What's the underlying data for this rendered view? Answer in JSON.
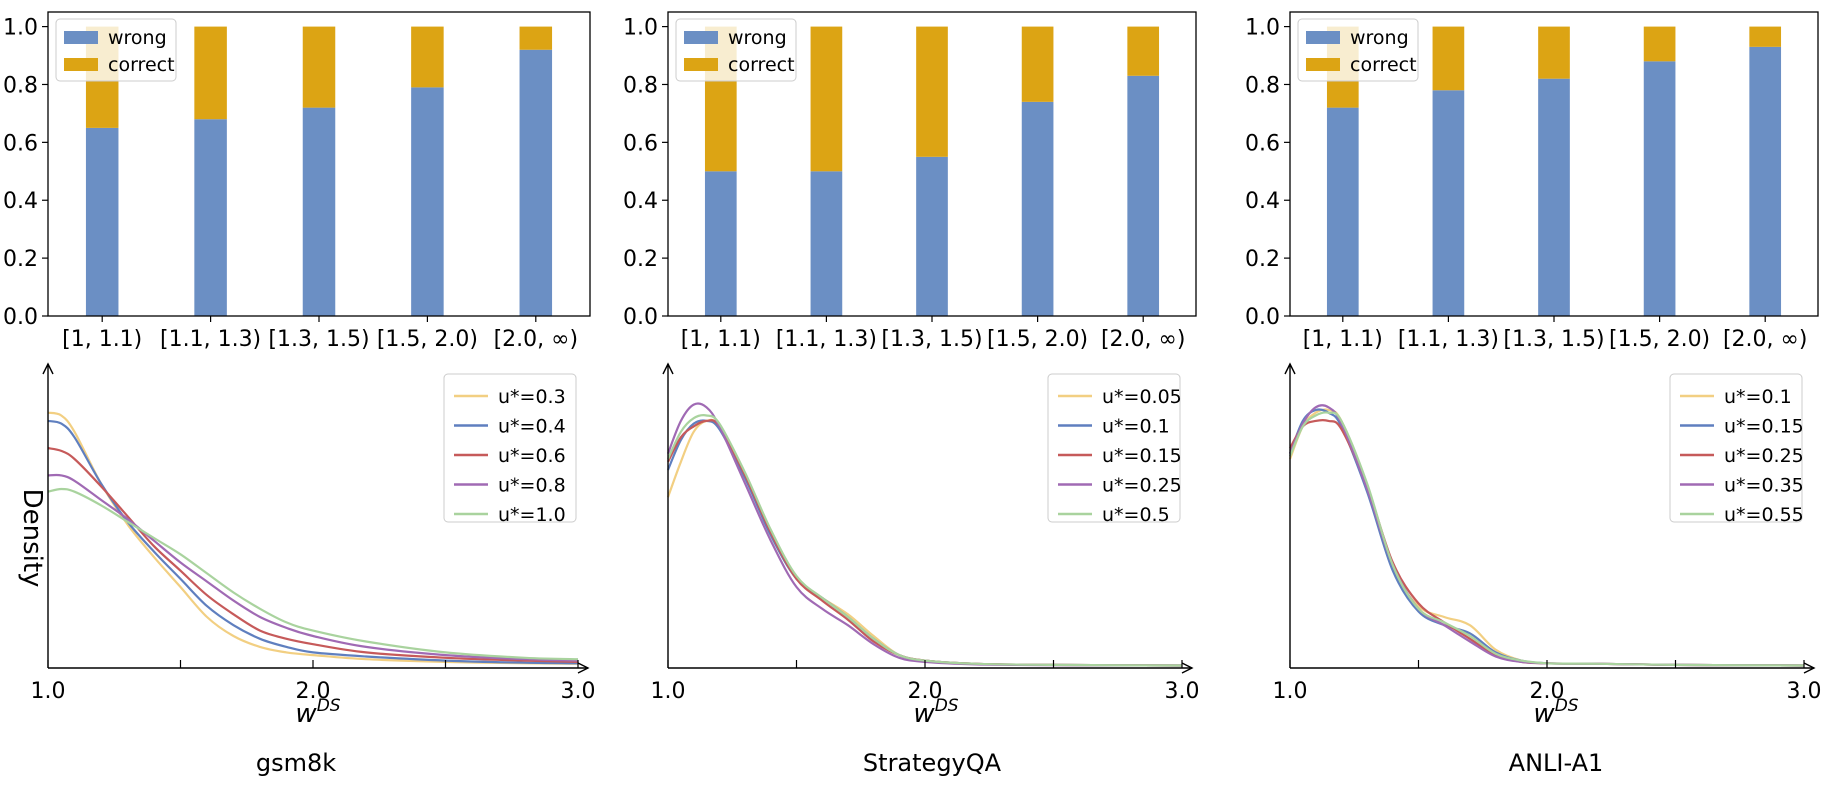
{
  "figure": {
    "x_axis_label": {
      "base": "w",
      "sup": "DS"
    },
    "y_axis_label": "Density",
    "panels": [
      {
        "caption": "gsm8k"
      },
      {
        "caption": "StrategyQA"
      },
      {
        "caption": "ANLI-A1"
      }
    ]
  },
  "colors": {
    "wrong": "#6b8fc4",
    "correct": "#dca414",
    "kde": [
      "#f2cf82",
      "#5f7fbf",
      "#c65a5a",
      "#a06ab4",
      "#a9d39e"
    ]
  },
  "chart_data": [
    {
      "type": "bar",
      "stacked": true,
      "normalized": true,
      "dataset": "gsm8k",
      "categories": [
        "[1, 1.1)",
        "[1.1, 1.3)",
        "[1.3, 1.5)",
        "[1.5, 2.0)",
        "[2.0, ∞)"
      ],
      "series": [
        {
          "name": "wrong",
          "values": [
            0.65,
            0.68,
            0.72,
            0.79,
            0.92
          ]
        },
        {
          "name": "correct",
          "values": [
            0.35,
            0.32,
            0.28,
            0.21,
            0.08
          ]
        }
      ],
      "ylim": [
        0,
        1.0
      ],
      "yticks": [
        "0.0",
        "0.2",
        "0.4",
        "0.6",
        "0.8",
        "1.0"
      ],
      "legend": {
        "position": "top-left",
        "entries": [
          "wrong",
          "correct"
        ]
      }
    },
    {
      "type": "bar",
      "stacked": true,
      "normalized": true,
      "dataset": "StrategyQA",
      "categories": [
        "[1, 1.1)",
        "[1.1, 1.3)",
        "[1.3, 1.5)",
        "[1.5, 2.0)",
        "[2.0, ∞)"
      ],
      "series": [
        {
          "name": "wrong",
          "values": [
            0.5,
            0.5,
            0.55,
            0.74,
            0.83
          ]
        },
        {
          "name": "correct",
          "values": [
            0.5,
            0.5,
            0.45,
            0.26,
            0.17
          ]
        }
      ],
      "ylim": [
        0,
        1.0
      ],
      "yticks": [
        "0.0",
        "0.2",
        "0.4",
        "0.6",
        "0.8",
        "1.0"
      ],
      "legend": {
        "position": "top-left",
        "entries": [
          "wrong",
          "correct"
        ]
      }
    },
    {
      "type": "bar",
      "stacked": true,
      "normalized": true,
      "dataset": "ANLI-A1",
      "categories": [
        "[1, 1.1)",
        "[1.1, 1.3)",
        "[1.3, 1.5)",
        "[1.5, 2.0)",
        "[2.0, ∞)"
      ],
      "series": [
        {
          "name": "wrong",
          "values": [
            0.72,
            0.78,
            0.82,
            0.88,
            0.93
          ]
        },
        {
          "name": "correct",
          "values": [
            0.28,
            0.22,
            0.18,
            0.12,
            0.07
          ]
        }
      ],
      "ylim": [
        0,
        1.0
      ],
      "yticks": [
        "0.0",
        "0.2",
        "0.4",
        "0.6",
        "0.8",
        "1.0"
      ],
      "legend": {
        "position": "top-left",
        "entries": [
          "wrong",
          "correct"
        ]
      }
    },
    {
      "type": "line",
      "subtype": "kde",
      "dataset": "gsm8k",
      "xlim": [
        1.0,
        3.0
      ],
      "ylim": [
        0,
        1.0
      ],
      "xticks": [
        "1.0",
        "2.0",
        "3.0"
      ],
      "x": [
        1.0,
        1.05,
        1.1,
        1.2,
        1.3,
        1.4,
        1.5,
        1.6,
        1.7,
        1.8,
        1.9,
        2.0,
        2.2,
        2.5,
        2.8,
        3.0
      ],
      "series": [
        {
          "name": "u*=0.3",
          "values": [
            0.93,
            0.92,
            0.86,
            0.67,
            0.52,
            0.4,
            0.29,
            0.18,
            0.11,
            0.07,
            0.05,
            0.04,
            0.025,
            0.015,
            0.01,
            0.008
          ]
        },
        {
          "name": "u*=0.4",
          "values": [
            0.9,
            0.89,
            0.84,
            0.67,
            0.53,
            0.42,
            0.32,
            0.22,
            0.15,
            0.1,
            0.07,
            0.05,
            0.035,
            0.02,
            0.012,
            0.01
          ]
        },
        {
          "name": "u*=0.6",
          "values": [
            0.8,
            0.79,
            0.76,
            0.66,
            0.55,
            0.44,
            0.35,
            0.26,
            0.19,
            0.13,
            0.1,
            0.08,
            0.05,
            0.03,
            0.02,
            0.015
          ]
        },
        {
          "name": "u*=0.8",
          "values": [
            0.7,
            0.7,
            0.68,
            0.61,
            0.54,
            0.46,
            0.38,
            0.31,
            0.24,
            0.18,
            0.14,
            0.11,
            0.07,
            0.04,
            0.025,
            0.02
          ]
        },
        {
          "name": "u*=1.0",
          "values": [
            0.64,
            0.65,
            0.64,
            0.59,
            0.53,
            0.47,
            0.41,
            0.34,
            0.27,
            0.21,
            0.16,
            0.13,
            0.09,
            0.05,
            0.03,
            0.025
          ]
        }
      ],
      "legend": {
        "position": "top-right",
        "entries": [
          "u*=0.3",
          "u*=0.4",
          "u*=0.6",
          "u*=0.8",
          "u*=1.0"
        ]
      }
    },
    {
      "type": "line",
      "subtype": "kde",
      "dataset": "StrategyQA",
      "xlim": [
        1.0,
        3.0
      ],
      "ylim": [
        0,
        1.0
      ],
      "xticks": [
        "1.0",
        "2.0",
        "3.0"
      ],
      "x": [
        1.0,
        1.05,
        1.1,
        1.15,
        1.2,
        1.3,
        1.4,
        1.5,
        1.6,
        1.7,
        1.8,
        1.9,
        2.0,
        2.2,
        2.5,
        3.0
      ],
      "series": [
        {
          "name": "u*=0.05",
          "values": [
            0.62,
            0.75,
            0.86,
            0.9,
            0.88,
            0.7,
            0.48,
            0.32,
            0.25,
            0.19,
            0.11,
            0.04,
            0.02,
            0.008,
            0.004,
            0.002
          ]
        },
        {
          "name": "u*=0.1",
          "values": [
            0.72,
            0.83,
            0.89,
            0.9,
            0.87,
            0.69,
            0.48,
            0.32,
            0.25,
            0.18,
            0.1,
            0.04,
            0.02,
            0.008,
            0.004,
            0.002
          ]
        },
        {
          "name": "u*=0.15",
          "values": [
            0.75,
            0.84,
            0.88,
            0.9,
            0.88,
            0.7,
            0.49,
            0.32,
            0.24,
            0.17,
            0.09,
            0.04,
            0.02,
            0.008,
            0.004,
            0.002
          ]
        },
        {
          "name": "u*=0.25",
          "values": [
            0.78,
            0.9,
            0.96,
            0.95,
            0.88,
            0.67,
            0.46,
            0.29,
            0.21,
            0.15,
            0.08,
            0.03,
            0.015,
            0.006,
            0.003,
            0.002
          ]
        },
        {
          "name": "u*=0.5",
          "values": [
            0.76,
            0.86,
            0.91,
            0.92,
            0.89,
            0.71,
            0.5,
            0.33,
            0.25,
            0.18,
            0.1,
            0.04,
            0.02,
            0.008,
            0.004,
            0.002
          ]
        }
      ],
      "legend": {
        "position": "top-right",
        "entries": [
          "u*=0.05",
          "u*=0.1",
          "u*=0.15",
          "u*=0.25",
          "u*=0.5"
        ]
      }
    },
    {
      "type": "line",
      "subtype": "kde",
      "dataset": "ANLI-A1",
      "xlim": [
        1.0,
        3.0
      ],
      "ylim": [
        0,
        1.0
      ],
      "xticks": [
        "1.0",
        "2.0",
        "3.0"
      ],
      "x": [
        1.0,
        1.05,
        1.1,
        1.15,
        1.2,
        1.3,
        1.4,
        1.5,
        1.6,
        1.7,
        1.8,
        1.9,
        2.0,
        2.2,
        2.5,
        3.0
      ],
      "series": [
        {
          "name": "u*=0.1",
          "values": [
            0.76,
            0.88,
            0.93,
            0.94,
            0.9,
            0.66,
            0.36,
            0.22,
            0.18,
            0.15,
            0.06,
            0.02,
            0.01,
            0.008,
            0.004,
            0.002
          ]
        },
        {
          "name": "u*=0.15",
          "values": [
            0.78,
            0.9,
            0.94,
            0.93,
            0.88,
            0.64,
            0.35,
            0.2,
            0.15,
            0.12,
            0.05,
            0.02,
            0.01,
            0.008,
            0.004,
            0.002
          ]
        },
        {
          "name": "u*=0.25",
          "values": [
            0.8,
            0.88,
            0.9,
            0.9,
            0.87,
            0.66,
            0.38,
            0.23,
            0.16,
            0.1,
            0.04,
            0.015,
            0.01,
            0.008,
            0.004,
            0.002
          ]
        },
        {
          "name": "u*=0.35",
          "values": [
            0.78,
            0.89,
            0.95,
            0.95,
            0.89,
            0.65,
            0.37,
            0.21,
            0.15,
            0.09,
            0.035,
            0.015,
            0.01,
            0.008,
            0.004,
            0.002
          ]
        },
        {
          "name": "u*=0.55",
          "values": [
            0.77,
            0.88,
            0.92,
            0.93,
            0.9,
            0.67,
            0.37,
            0.21,
            0.16,
            0.11,
            0.045,
            0.02,
            0.01,
            0.008,
            0.004,
            0.002
          ]
        }
      ],
      "legend": {
        "position": "top-right",
        "entries": [
          "u*=0.1",
          "u*=0.15",
          "u*=0.25",
          "u*=0.35",
          "u*=0.55"
        ]
      }
    }
  ]
}
